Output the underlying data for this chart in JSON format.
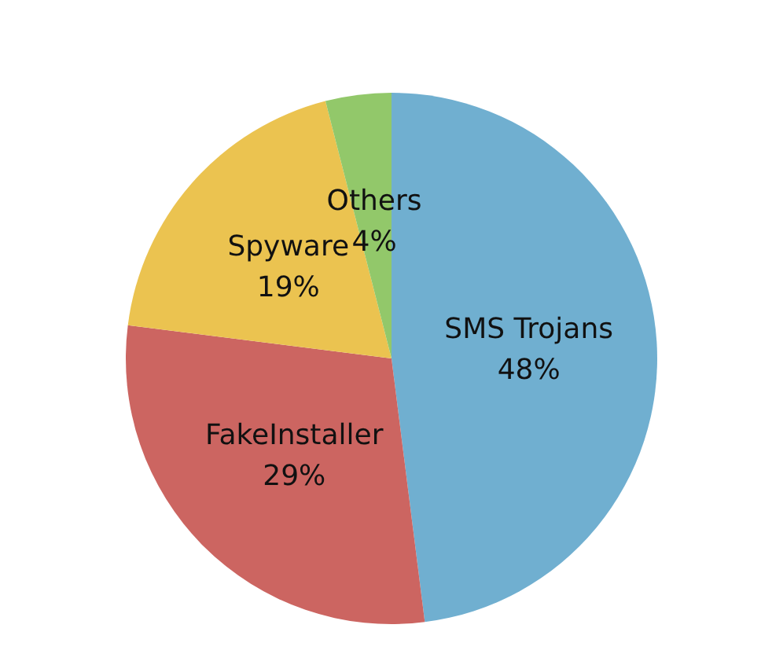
{
  "chart_data": {
    "type": "pie",
    "categories": [
      "SMS Trojans",
      "FakeInstaller",
      "Spyware",
      "Others"
    ],
    "values": [
      48,
      29,
      19,
      4
    ],
    "colors": [
      "#70afd0",
      "#cc6561",
      "#ebc350",
      "#92c86a"
    ],
    "value_labels": [
      "48%",
      "29%",
      "19%",
      "4%"
    ],
    "legend": false
  }
}
